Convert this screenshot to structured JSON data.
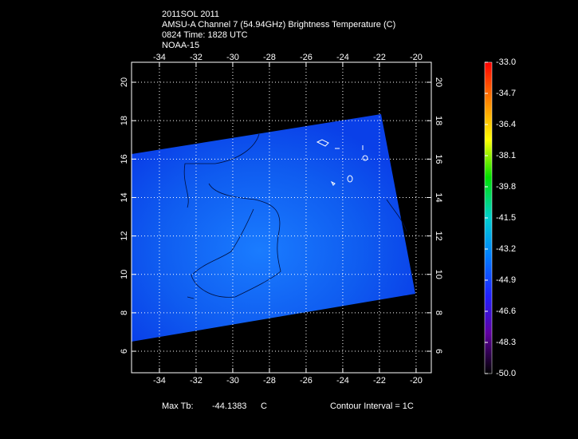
{
  "header": {
    "lines": [
      "2011SOL 2011",
      "AMSU-A Channel 7 (54.94GHz) Brightness Temperature (C)",
      "0824 Time: 1828 UTC",
      "NOAA-15"
    ]
  },
  "map": {
    "xlim": [
      -35.52,
      -19.17
    ],
    "ylim": [
      4.88,
      21.04
    ],
    "xticks": [
      -34,
      -32,
      -30,
      -28,
      -26,
      -24,
      -22,
      -20
    ],
    "yticks": [
      6,
      8,
      10,
      12,
      14,
      16,
      18,
      20
    ]
  },
  "colorbar": {
    "lim": [
      -50,
      -33
    ],
    "ticks": [
      {
        "value": -33,
        "label": "-33.0"
      },
      {
        "value": -34.7,
        "label": "-34.7"
      },
      {
        "value": -36.4,
        "label": "-36.4"
      },
      {
        "value": -38.1,
        "label": "-38.1"
      },
      {
        "value": -39.8,
        "label": "-39.8"
      },
      {
        "value": -41.5,
        "label": "-41.5"
      },
      {
        "value": -43.2,
        "label": "-43.2"
      },
      {
        "value": -44.9,
        "label": "-44.9"
      },
      {
        "value": -46.6,
        "label": "-46.6"
      },
      {
        "value": -48.3,
        "label": "-48.3"
      },
      {
        "value": -50,
        "label": "-50.0"
      }
    ]
  },
  "footer": {
    "max_label": "Max Tb:",
    "max_value": -44.1383,
    "max_unit": "C",
    "contour": "Contour Interval = 1C"
  }
}
